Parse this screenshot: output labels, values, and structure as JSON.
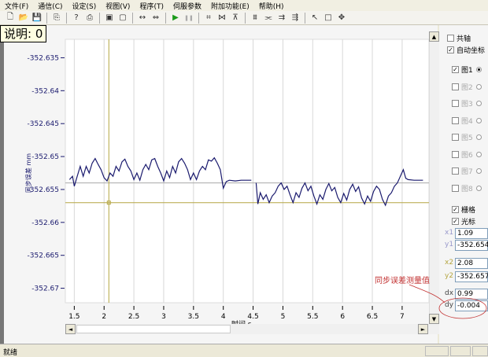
{
  "menu": [
    "文件(F)",
    "通信(C)",
    "设定(S)",
    "视图(V)",
    "程序(T)",
    "伺服参数",
    "附加功能(E)",
    "帮助(H)"
  ],
  "toolbar_icons": [
    "new-icon",
    "open-icon",
    "save-icon",
    "copy-icon",
    "help-icon",
    "print-icon",
    "zoom-fit-icon",
    "zoom-box-icon",
    "expand-h-icon",
    "shrink-h-icon",
    "play-icon",
    "pause-icon",
    "axis-icon",
    "axis2-icon",
    "axis3-icon",
    "cursor-a-icon",
    "cursor-b-icon",
    "cursor-c-icon",
    "cursor-d-icon",
    "pointer-icon",
    "select-rect-icon",
    "move-icon"
  ],
  "tooltip": "说明: 0",
  "chart_data": {
    "type": "line",
    "ylabel": "同步误差 mm",
    "xlabel": "时间 s",
    "xlim": [
      1.35,
      7.45
    ],
    "ylim": [
      -352.6322,
      -352.6722
    ],
    "xticks": [
      "1.5",
      "2",
      "2.5",
      "3",
      "3.5",
      "4",
      "4.5",
      "5",
      "5.5",
      "6",
      "6.5",
      "7"
    ],
    "xtick_values": [
      1.5,
      2,
      2.5,
      3,
      3.5,
      4,
      4.5,
      5,
      5.5,
      6,
      6.5,
      7
    ],
    "yticks": [
      "-352.635",
      "-352.64",
      "-352.645",
      "-352.65",
      "-352.655",
      "-352.66",
      "-352.665",
      "-352.67"
    ],
    "ytick_values": [
      -352.635,
      -352.64,
      -352.645,
      -352.65,
      -352.655,
      -352.66,
      -352.665,
      -352.67
    ],
    "grid": true,
    "series_color": "#1a1a6e",
    "cursor_color": "#b5a642",
    "cursor1": {
      "x": 1.09,
      "y": -352.654
    },
    "cursor2": {
      "x": 2.08,
      "y": -352.657
    },
    "points": [
      [
        1.42,
        -352.6535
      ],
      [
        1.47,
        -352.653
      ],
      [
        1.5,
        -352.6545
      ],
      [
        1.55,
        -352.653
      ],
      [
        1.6,
        -352.6515
      ],
      [
        1.65,
        -352.653
      ],
      [
        1.7,
        -352.6515
      ],
      [
        1.75,
        -352.6525
      ],
      [
        1.8,
        -352.651
      ],
      [
        1.85,
        -352.6503
      ],
      [
        1.9,
        -352.6512
      ],
      [
        1.95,
        -352.652
      ],
      [
        2.0,
        -352.6532
      ],
      [
        2.05,
        -352.6537
      ],
      [
        2.1,
        -352.6525
      ],
      [
        2.15,
        -352.653
      ],
      [
        2.2,
        -352.6515
      ],
      [
        2.25,
        -352.6522
      ],
      [
        2.3,
        -352.6508
      ],
      [
        2.35,
        -352.6504
      ],
      [
        2.4,
        -352.6515
      ],
      [
        2.45,
        -352.6522
      ],
      [
        2.5,
        -352.6535
      ],
      [
        2.55,
        -352.6525
      ],
      [
        2.6,
        -352.6536
      ],
      [
        2.65,
        -352.652
      ],
      [
        2.7,
        -352.6512
      ],
      [
        2.75,
        -352.652
      ],
      [
        2.8,
        -352.6505
      ],
      [
        2.85,
        -352.6503
      ],
      [
        2.9,
        -352.6515
      ],
      [
        2.95,
        -352.6525
      ],
      [
        3.0,
        -352.6537
      ],
      [
        3.05,
        -352.6522
      ],
      [
        3.1,
        -352.6532
      ],
      [
        3.15,
        -352.6515
      ],
      [
        3.2,
        -352.6525
      ],
      [
        3.25,
        -352.6508
      ],
      [
        3.3,
        -352.6503
      ],
      [
        3.35,
        -352.651
      ],
      [
        3.4,
        -352.652
      ],
      [
        3.45,
        -352.6535
      ],
      [
        3.5,
        -352.6525
      ],
      [
        3.55,
        -352.6535
      ],
      [
        3.6,
        -352.6522
      ],
      [
        3.65,
        -352.6515
      ],
      [
        3.7,
        -352.652
      ],
      [
        3.75,
        -352.6505
      ],
      [
        3.8,
        -352.6507
      ],
      [
        3.85,
        -352.6502
      ],
      [
        3.9,
        -352.651
      ],
      [
        3.95,
        -352.652
      ],
      [
        4.0,
        -352.6548
      ],
      [
        4.05,
        -352.6538
      ],
      [
        4.1,
        -352.6536
      ],
      [
        4.2,
        -352.6537
      ],
      [
        4.3,
        -352.6536
      ],
      [
        4.47,
        -352.6536
      ],
      null,
      [
        4.55,
        -352.654
      ],
      [
        4.58,
        -352.6572
      ],
      [
        4.62,
        -352.6555
      ],
      [
        4.67,
        -352.6565
      ],
      [
        4.72,
        -352.6558
      ],
      [
        4.77,
        -352.657
      ],
      [
        4.82,
        -352.656
      ],
      [
        4.87,
        -352.6555
      ],
      [
        4.92,
        -352.6545
      ],
      [
        4.97,
        -352.654
      ],
      [
        5.02,
        -352.655
      ],
      [
        5.07,
        -352.6545
      ],
      [
        5.12,
        -352.6558
      ],
      [
        5.17,
        -352.657
      ],
      [
        5.22,
        -352.6555
      ],
      [
        5.27,
        -352.6562
      ],
      [
        5.32,
        -352.6548
      ],
      [
        5.37,
        -352.654
      ],
      [
        5.42,
        -352.6552
      ],
      [
        5.47,
        -352.6545
      ],
      [
        5.52,
        -352.656
      ],
      [
        5.57,
        -352.6572
      ],
      [
        5.62,
        -352.6558
      ],
      [
        5.67,
        -352.6565
      ],
      [
        5.72,
        -352.655
      ],
      [
        5.77,
        -352.6541
      ],
      [
        5.82,
        -352.6552
      ],
      [
        5.87,
        -352.6547
      ],
      [
        5.92,
        -352.6562
      ],
      [
        5.97,
        -352.657
      ],
      [
        6.02,
        -352.6556
      ],
      [
        6.07,
        -352.6566
      ],
      [
        6.12,
        -352.655
      ],
      [
        6.17,
        -352.6542
      ],
      [
        6.22,
        -352.6553
      ],
      [
        6.27,
        -352.6546
      ],
      [
        6.32,
        -352.6563
      ],
      [
        6.37,
        -352.6572
      ],
      [
        6.42,
        -352.656
      ],
      [
        6.47,
        -352.6568
      ],
      [
        6.52,
        -352.6553
      ],
      [
        6.57,
        -352.6545
      ],
      [
        6.62,
        -352.655
      ],
      [
        6.67,
        -352.6565
      ],
      [
        6.72,
        -352.6574
      ],
      [
        6.77,
        -352.656
      ],
      [
        6.82,
        -352.6555
      ],
      [
        6.87,
        -352.6545
      ],
      [
        6.92,
        -352.654
      ],
      [
        6.97,
        -352.653
      ],
      [
        7.02,
        -352.652
      ],
      [
        7.06,
        -352.6533
      ],
      [
        7.1,
        -352.6535
      ],
      [
        7.2,
        -352.6536
      ],
      [
        7.35,
        -352.6536
      ]
    ]
  },
  "panel": {
    "shared_axis": {
      "label": "共轴",
      "checked": false
    },
    "auto_axis": {
      "label": "自动坐标",
      "checked": true
    },
    "plots": [
      {
        "label": "图1",
        "checked": true,
        "selected": true
      },
      {
        "label": "图2",
        "checked": false
      },
      {
        "label": "图3",
        "checked": false
      },
      {
        "label": "图4",
        "checked": false
      },
      {
        "label": "图5",
        "checked": false
      },
      {
        "label": "图6",
        "checked": false
      },
      {
        "label": "图7",
        "checked": false
      },
      {
        "label": "图8",
        "checked": false
      }
    ],
    "grid": {
      "label": "栅格",
      "checked": true
    },
    "cursor": {
      "label": "光标",
      "checked": true
    },
    "fields": [
      {
        "label": "x1",
        "value": "1.09",
        "color": "#9999cc"
      },
      {
        "label": "y1",
        "value": "-352.654",
        "color": "#9999cc"
      },
      {
        "label": "x2",
        "value": "2.08",
        "color": "#b5a642"
      },
      {
        "label": "y2",
        "value": "-352.657",
        "color": "#b5a642"
      },
      {
        "label": "dx",
        "value": "0.99",
        "color": "#444"
      },
      {
        "label": "dy",
        "value": "-0.004",
        "color": "#444"
      }
    ]
  },
  "annotation": "同步误差测量值",
  "status": "就绪"
}
